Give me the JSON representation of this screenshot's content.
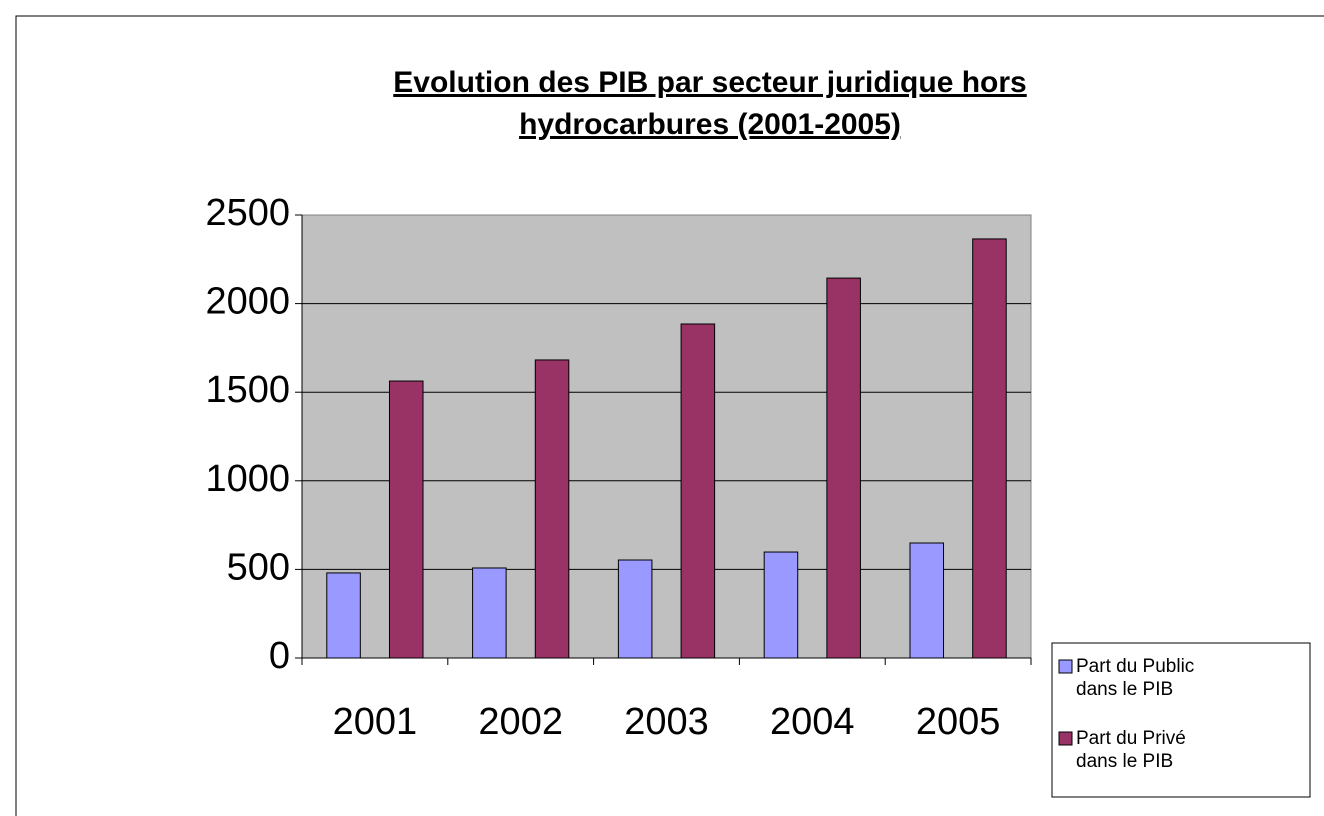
{
  "chart_data": {
    "type": "bar",
    "title": "Evolution des PIB par secteur juridique hors hydrocarbures (2001-2005)",
    "categories": [
      "2001",
      "2002",
      "2003",
      "2004",
      "2005"
    ],
    "series": [
      {
        "name": "Part du Public dans le PIB",
        "color": "#9999ff",
        "values": [
          480,
          508,
          553,
          598,
          649
        ]
      },
      {
        "name": "Part du Privé dans le PIB",
        "color": "#993366",
        "values": [
          1563,
          1682,
          1885,
          2144,
          2365
        ]
      }
    ],
    "ylim": [
      0,
      2500
    ],
    "yticks": [
      0,
      500,
      1000,
      1500,
      2000,
      2500
    ],
    "grid": true,
    "legend": "right"
  }
}
